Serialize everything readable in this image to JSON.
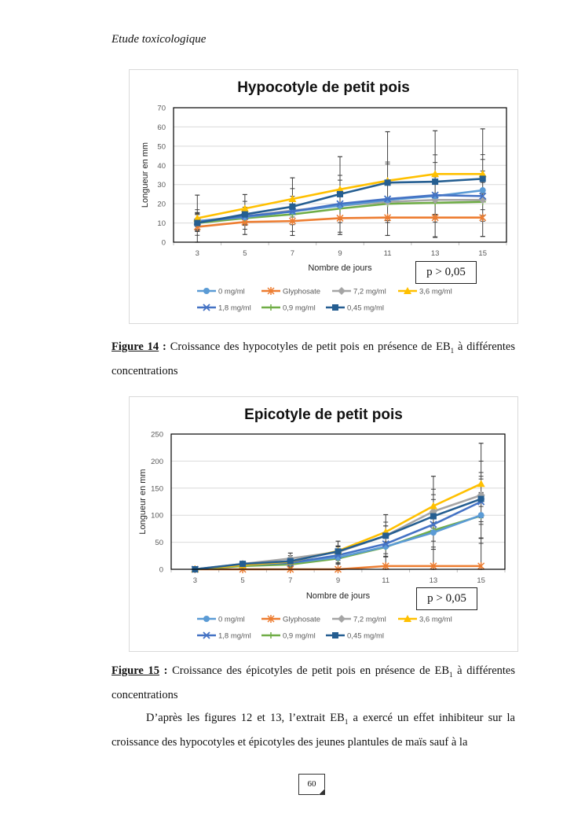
{
  "header": {
    "title": "Etude toxicologique"
  },
  "legend": [
    {
      "name": "0 mg/ml",
      "color": "#5B9BD5",
      "marker": "circle"
    },
    {
      "name": "Glyphosate",
      "color": "#ED7D31",
      "marker": "star"
    },
    {
      "name": "7,2 mg/ml",
      "color": "#A5A5A5",
      "marker": "diamond"
    },
    {
      "name": "3,6 mg/ml",
      "color": "#FFC000",
      "marker": "triangle"
    },
    {
      "name": "1,8 mg/ml",
      "color": "#4472C4",
      "marker": "x"
    },
    {
      "name": "0,9 mg/ml",
      "color": "#70AD47",
      "marker": "plus"
    },
    {
      "name": "0,45 mg/ml",
      "color": "#255E91",
      "marker": "square"
    }
  ],
  "chart_data": [
    {
      "type": "line",
      "title": "Hypocotyle  de petit pois",
      "xlabel": "Nombre  de  jours",
      "ylabel": "Longueur  en  mm",
      "x": [
        3,
        5,
        7,
        9,
        11,
        13,
        15
      ],
      "ylim": [
        0,
        70
      ],
      "yticks": [
        0,
        10,
        20,
        30,
        40,
        50,
        60,
        70
      ],
      "grid": true,
      "legend_position": "bottom",
      "annotation": "p > 0,05",
      "series": [
        {
          "name": "0 mg/ml",
          "values": [
            11,
            13,
            16,
            19,
            22,
            24,
            27
          ]
        },
        {
          "name": "Glyphosate",
          "values": [
            8,
            10.5,
            11,
            12.5,
            12.8,
            12.8,
            12.8
          ]
        },
        {
          "name": "7,2 mg/ml",
          "values": [
            11,
            13.5,
            16.5,
            19,
            21,
            22,
            22
          ]
        },
        {
          "name": "3,6 mg/ml",
          "values": [
            12.5,
            17.5,
            22.5,
            27.5,
            32,
            35.5,
            35.5
          ]
        },
        {
          "name": "1,8 mg/ml",
          "values": [
            10.5,
            13.5,
            16,
            20,
            22.5,
            24.5,
            24
          ]
        },
        {
          "name": "0,9 mg/ml",
          "values": [
            10,
            12.5,
            14.5,
            17.5,
            20,
            20.5,
            21
          ]
        },
        {
          "name": "0,45 mg/ml",
          "values": [
            10,
            14.5,
            18.5,
            25,
            31,
            31.5,
            33
          ]
        }
      ],
      "error_bars": [
        {
          "x": 3,
          "low": 0,
          "high": 24.5
        },
        {
          "x": 5,
          "low": 4,
          "high": 24.8
        },
        {
          "x": 7,
          "low": 3.5,
          "high": 33.5
        },
        {
          "x": 9,
          "low": 4,
          "high": 44.5
        },
        {
          "x": 11,
          "low": 3.5,
          "high": 57.5
        },
        {
          "x": 13,
          "low": 2.5,
          "high": 58
        },
        {
          "x": 15,
          "low": 3,
          "high": 59
        }
      ]
    },
    {
      "type": "line",
      "title": "Epicotyle  de petit pois",
      "xlabel": "Nombre  de jours",
      "ylabel": "Longueur  en  mm",
      "x": [
        3,
        5,
        7,
        9,
        11,
        13,
        15
      ],
      "ylim": [
        0,
        250
      ],
      "yticks": [
        0,
        50,
        100,
        150,
        200,
        250
      ],
      "grid": true,
      "legend_position": "bottom",
      "annotation": "p > 0,05",
      "series": [
        {
          "name": "0 mg/ml",
          "values": [
            0,
            8,
            12,
            22,
            42,
            68,
            100
          ]
        },
        {
          "name": "Glyphosate",
          "values": [
            0,
            0,
            0,
            0,
            6,
            6,
            6
          ]
        },
        {
          "name": "7,2 mg/ml",
          "values": [
            0,
            10,
            20,
            32,
            62,
            107,
            137
          ]
        },
        {
          "name": "3,6 mg/ml",
          "values": [
            0,
            8,
            14,
            34,
            69,
            117,
            158
          ]
        },
        {
          "name": "1,8 mg/ml",
          "values": [
            0,
            8,
            12,
            26,
            47,
            83,
            125
          ]
        },
        {
          "name": "0,9 mg/ml",
          "values": [
            0,
            6,
            9,
            20,
            41,
            72,
            99
          ]
        },
        {
          "name": "0,45 mg/ml",
          "values": [
            0,
            10,
            15,
            33,
            62,
            98,
            130
          ]
        }
      ],
      "error_bars": [
        {
          "x": 7,
          "low": 0,
          "high": 30
        },
        {
          "x": 9,
          "low": 0,
          "high": 52
        },
        {
          "x": 11,
          "low": 0,
          "high": 101
        },
        {
          "x": 13,
          "low": 0,
          "high": 172
        },
        {
          "x": 15,
          "low": 0,
          "high": 233
        }
      ]
    }
  ],
  "captions": [
    {
      "label": "Figure 14",
      "sep": " : ",
      "text": "Croissance des hypocotyles de petit pois en présence de EB",
      "sub": "1",
      "tail": " à différentes concentrations"
    },
    {
      "label": "Figure 15",
      "sep": " : ",
      "text": "Croissance des épicotyles de petit pois en présence de EB",
      "sub": "1",
      "tail": " à différentes concentrations"
    }
  ],
  "paragraph": {
    "before": "D’après les figures 12 et 13, l’extrait EB",
    "sub": "1",
    "after": " a exercé un effet inhibiteur sur la croissance des hypocotyles et épicotyles des jeunes plantules de maïs sauf à la"
  },
  "page_number": "60"
}
